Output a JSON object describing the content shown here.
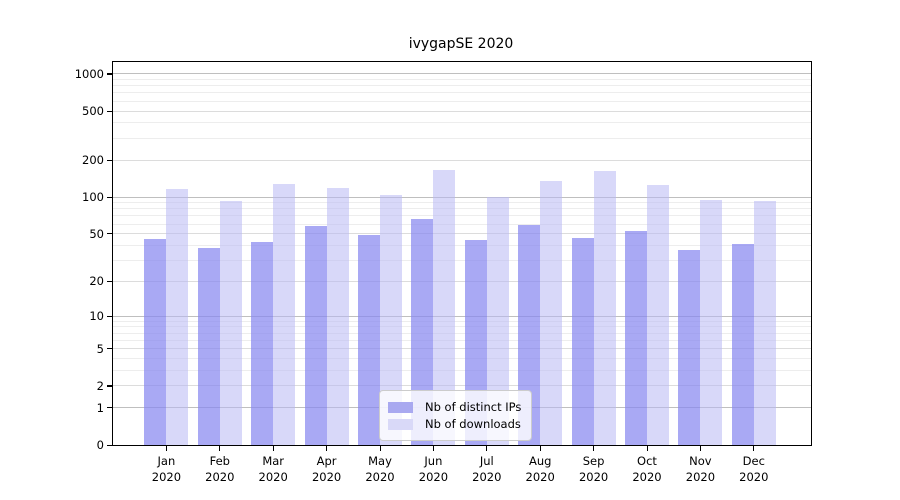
{
  "title": "ivygapSE 2020",
  "legend": {
    "items": [
      {
        "label": "Nb of distinct IPs",
        "color": "#a9a9f0"
      },
      {
        "label": "Nb of downloads",
        "color": "#d9d9f8"
      }
    ]
  },
  "y_axis": {
    "tick_values": [
      0,
      1,
      2,
      5,
      10,
      20,
      50,
      100,
      200,
      500,
      1000
    ],
    "tick_labels": [
      "0",
      "1",
      "2",
      "5",
      "10",
      "20",
      "50",
      "100",
      "200",
      "500",
      "1000"
    ]
  },
  "x_axis": {
    "months": [
      "Jan",
      "Feb",
      "Mar",
      "Apr",
      "May",
      "Jun",
      "Jul",
      "Aug",
      "Sep",
      "Oct",
      "Nov",
      "Dec"
    ],
    "year": "2020"
  },
  "colors": {
    "bar_dark_fill": "rgba(136,136,240,0.72)",
    "bar_light_fill": "rgba(184,184,244,0.55)",
    "swatch_dark": "#a9a9f0",
    "swatch_light": "#d9d9f8",
    "grid_major": "#bfbfbf",
    "grid_labeled": "#dcdcdc",
    "grid_minor": "#ededed"
  },
  "chart_data": {
    "type": "bar",
    "title": "ivygapSE 2020",
    "categories": [
      "Jan 2020",
      "Feb 2020",
      "Mar 2020",
      "Apr 2020",
      "May 2020",
      "Jun 2020",
      "Jul 2020",
      "Aug 2020",
      "Sep 2020",
      "Oct 2020",
      "Nov 2020",
      "Dec 2020"
    ],
    "series": [
      {
        "name": "Nb of distinct IPs",
        "values": [
          45,
          38,
          43,
          58,
          49,
          66,
          44,
          59,
          46,
          53,
          37,
          41
        ]
      },
      {
        "name": "Nb of downloads",
        "values": [
          117,
          93,
          128,
          118,
          103,
          166,
          101,
          134,
          163,
          126,
          95,
          92
        ]
      }
    ],
    "xlabel": "",
    "ylabel": "",
    "yscale": "log1p",
    "ylim": [
      0,
      1000
    ],
    "yticks": [
      0,
      1,
      2,
      5,
      10,
      20,
      50,
      100,
      200,
      500,
      1000
    ],
    "grid": "horizontal",
    "legend_position": "lower center"
  }
}
